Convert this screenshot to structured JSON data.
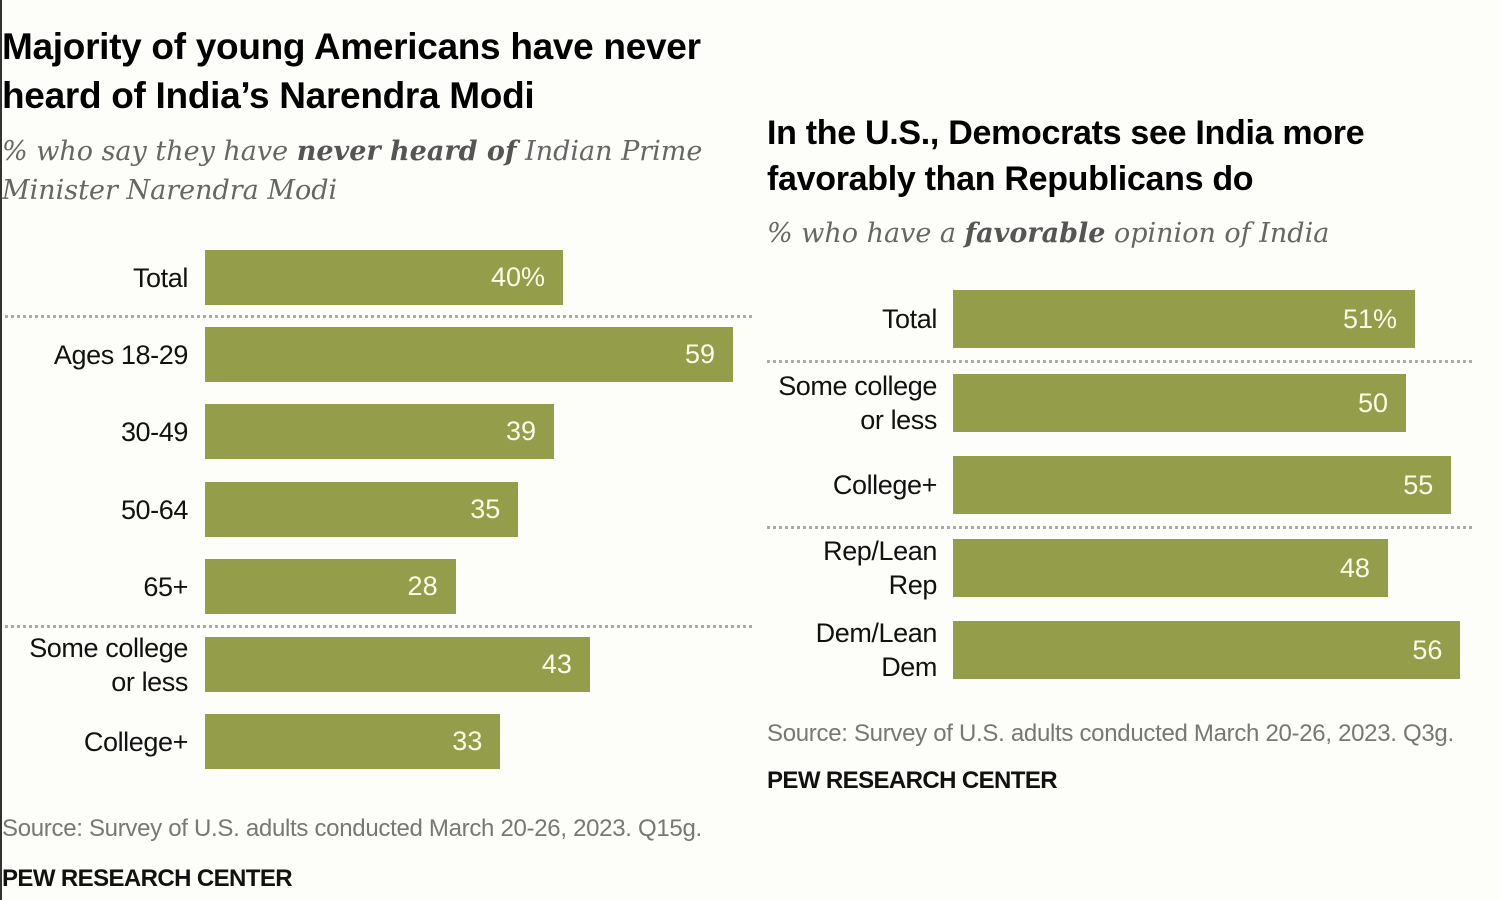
{
  "chart_data": [
    {
      "type": "bar",
      "orientation": "horizontal",
      "title": "Majority of young Americans have never heard of India’s Narendra Modi",
      "subtitle": {
        "pre": "% who say they have ",
        "bold": "never heard of",
        "post": " Indian Prime Minister Narendra Modi"
      },
      "categories": [
        "Total",
        "Ages 18-29",
        "30-49",
        "50-64",
        "65+",
        "Some college\nor less",
        "College+"
      ],
      "values": [
        40,
        59,
        39,
        35,
        28,
        43,
        33
      ],
      "value_labels": [
        "40%",
        "59",
        "39",
        "35",
        "28",
        "43",
        "33"
      ],
      "groups_separated_after": [
        0,
        4
      ],
      "xlabel": "",
      "ylabel": "",
      "xlim": [
        0,
        60
      ],
      "grid": false,
      "bar_color": "#949d4a",
      "source": "Source: Survey of U.S. adults conducted March 20-26, 2023. Q15g.",
      "brand": "PEW RESEARCH CENTER"
    },
    {
      "type": "bar",
      "orientation": "horizontal",
      "title": "In the U.S., Democrats see India more favorably than Republicans do",
      "subtitle": {
        "pre": "% who have a ",
        "bold": "favorable",
        "post": " opinion of India"
      },
      "categories": [
        "Total",
        "Some college\nor less",
        "College+",
        "Rep/Lean\nRep",
        "Dem/Lean\nDem"
      ],
      "values": [
        51,
        50,
        55,
        48,
        56
      ],
      "value_labels": [
        "51%",
        "50",
        "55",
        "48",
        "56"
      ],
      "groups_separated_after": [
        0,
        2
      ],
      "xlabel": "",
      "ylabel": "",
      "xlim": [
        0,
        60
      ],
      "grid": false,
      "bar_color": "#949d4a",
      "source": "Source: Survey of U.S. adults conducted March 20-26, 2023. Q3g.",
      "brand": "PEW RESEARCH CENTER"
    }
  ]
}
